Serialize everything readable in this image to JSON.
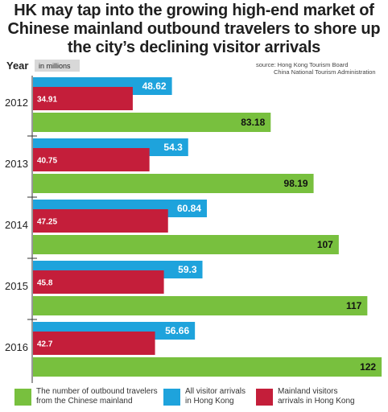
{
  "title_lines": [
    "HK may tap into the growing high-end market of",
    "Chinese mainland outbound travelers to shore up",
    "the city’s declining visitor arrivals"
  ],
  "source_lines": [
    "source: Hong Kong Tourism Board",
    "China National Tourism Administration"
  ],
  "chart_data": {
    "type": "bar",
    "orientation": "horizontal",
    "y_axis_label": "Year",
    "unit_label": "in millions",
    "categories": [
      "2012",
      "2013",
      "2014",
      "2015",
      "2016"
    ],
    "series": [
      {
        "name": "Mainland visitors arrivals in Hong Kong",
        "color": "#c41e3a",
        "values": [
          34.91,
          40.75,
          47.25,
          45.8,
          42.7
        ]
      },
      {
        "name": "All visitor arrivals in Hong Kong",
        "color": "#1ea3dc",
        "values": [
          48.62,
          54.3,
          60.84,
          59.3,
          56.66
        ]
      },
      {
        "name": "The number of outbound travelers from the Chinese mainland",
        "color": "#78c03e",
        "values": [
          83.18,
          98.19,
          107,
          117,
          122
        ]
      }
    ],
    "value_labels": [
      [
        "34.91",
        "40.75",
        "47.25",
        "45.8",
        "42.7"
      ],
      [
        "48.62",
        "54.3",
        "60.84",
        "59.3",
        "56.66"
      ],
      [
        "83.18",
        "98.19",
        "107",
        "117",
        "122"
      ]
    ],
    "grid": false,
    "legend_position": "bottom"
  },
  "legend": [
    {
      "label": "The number of outbound travelers\nfrom the Chinese mainland",
      "color": "#78c03e"
    },
    {
      "label": "All visitor arrivals\nin Hong Kong",
      "color": "#1ea3dc"
    },
    {
      "label": "Mainland visitors\narrivals in Hong Kong",
      "color": "#c41e3a"
    }
  ]
}
